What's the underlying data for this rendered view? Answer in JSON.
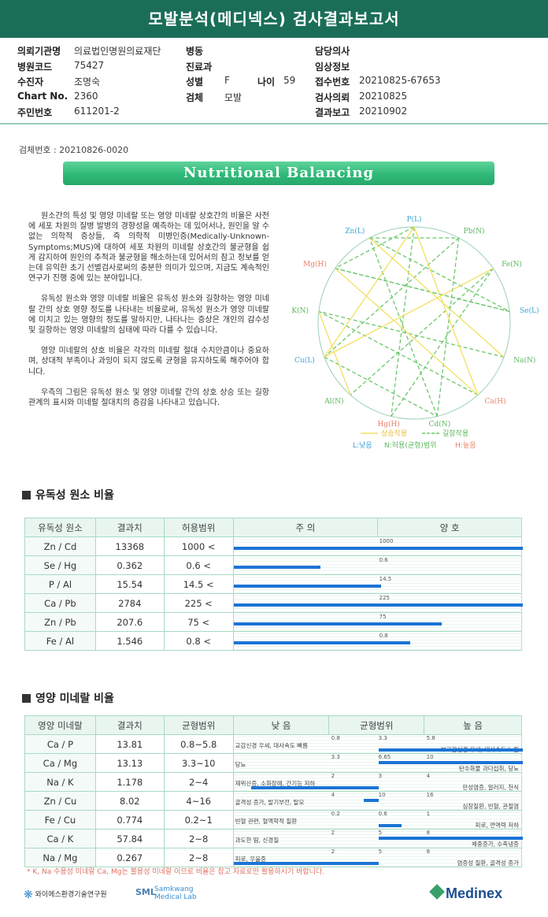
{
  "header": {
    "title": "모발분석(메디넥스) 검사결과보고서"
  },
  "info": {
    "rows": [
      {
        "l1": "의뢰기관명",
        "v1": "의료법인명원의료재단",
        "l2": "병동",
        "v2": "",
        "l3": "",
        "v3": "",
        "l4": "담당의사",
        "v4": ""
      },
      {
        "l1": "병원코드",
        "v1": "75427",
        "l2": "진료과",
        "v2": "",
        "l3": "",
        "v3": "",
        "l4": "임상정보",
        "v4": ""
      },
      {
        "l1": "수진자",
        "v1": "조명숙",
        "l2": "성별",
        "v2": "F",
        "l3": "나이",
        "v3": "59",
        "l4": "접수번호",
        "v4": "20210825-67653"
      },
      {
        "l1": "Chart No.",
        "v1": "2360",
        "l2": "검체",
        "v2": "모발",
        "l3": "",
        "v3": "",
        "l4": "검사의뢰",
        "v4": "20210825"
      },
      {
        "l1": "주민번호",
        "v1": "611201-2",
        "l2": "",
        "v2": "",
        "l3": "",
        "v3": "",
        "l4": "결과보고",
        "v4": "20210902"
      }
    ]
  },
  "sample_no": "검체번호 : 20210826-0020",
  "banner": "Nutritional Balancing",
  "desc": [
    "원소간의 특성 및 영양 미네랄 또는 영양 미네랄 상호간의 비율은 사전에 세포 차원의 질병 발병의 경향성을 예측하는 데 있어서나, 원인을 알 수 없는 의학적 증상들, 즉 의학적 미병인증(Medically-Unknown-Symptoms;MUS)에 대하여 세포 차원의 미네랄 상호간의 불균형을 쉽게 감지하여 원인의 추적과 불균형을 해소하는데 있어서의 참고 정보를 얻는데 유익한 초기 선별검사로써의 충분한 의미가 있으며, 지금도 계속적인 연구가 진행 중에 있는 분야입니다.",
    "유독성 원소와 영양 미네랄 비율은 유독성 원소와 길항하는 영양 미네랄 간의 상호 영향 정도를 나타내는 비율로써, 유독성 원소가 영양 미네랄에 미치고 있는 영향의 정도를 말하지만, 나타나는 증상은 개인의 감수성 및 길항하는 영양 미네랄의 심태에 따라 다를 수 있습니다.",
    "영양 미네랄의 상호 비율은 각각의 미네랄 절대 수치만큼이나 중요하며, 상대적 부족이나 과잉이 되지 않도록 균형을 유지하도록 해주어야 합니다.",
    "우측의 그림은 유독성 원소 및 영양 미네랄 간의 상호 상승 또는 길항 관계의 표시와 미네랄 절대치의 증감을 나타내고 있습니다."
  ],
  "wheel": {
    "nodes": [
      {
        "label": "P(L)",
        "color": "#3aa3d8"
      },
      {
        "label": "Pb(N)",
        "color": "#5cb85c"
      },
      {
        "label": "Fe(N)",
        "color": "#5cb85c"
      },
      {
        "label": "Se(L)",
        "color": "#3aa3d8"
      },
      {
        "label": "Na(N)",
        "color": "#5cb85c"
      },
      {
        "label": "Ca(H)",
        "color": "#e8806a"
      },
      {
        "label": "Cd(N)",
        "color": "#5cb85c"
      },
      {
        "label": "Hg(H)",
        "color": "#e8806a"
      },
      {
        "label": "Al(N)",
        "color": "#5cb85c"
      },
      {
        "label": "Cu(L)",
        "color": "#3aa3d8"
      },
      {
        "label": "K(N)",
        "color": "#5cb85c"
      },
      {
        "label": "Mg(H)",
        "color": "#e8806a"
      },
      {
        "label": "Zn(L)",
        "color": "#3aa3d8"
      }
    ],
    "legend_synergy": "상승작용",
    "legend_antagonism": "길항작용",
    "legend_low": "L:낮음",
    "legend_normal": "N:허용(균형)범위",
    "legend_high": "H:높음"
  },
  "toxic": {
    "title": "유독성 원소 비율",
    "headers": [
      "유독성 원소",
      "결과치",
      "허용범위",
      "주      의",
      "양      호"
    ],
    "rows": [
      {
        "name": "Zn / Cd",
        "result": "13368",
        "range": "1000 <",
        "threshold": "1000",
        "frac": 1.0
      },
      {
        "name": "Se / Hg",
        "result": "0.362",
        "range": "0.6 <",
        "threshold": "0.6",
        "frac": 0.3
      },
      {
        "name": "P / Al",
        "result": "15.54",
        "range": "14.5 <",
        "threshold": "14.5",
        "frac": 0.51
      },
      {
        "name": "Ca / Pb",
        "result": "2784",
        "range": "225 <",
        "threshold": "225",
        "frac": 1.0
      },
      {
        "name": "Zn / Pb",
        "result": "207.6",
        "range": "75 <",
        "threshold": "75",
        "frac": 0.72
      },
      {
        "name": "Fe / Al",
        "result": "1.546",
        "range": "0.8 <",
        "threshold": "0.8",
        "frac": 0.61
      }
    ]
  },
  "nutrient": {
    "title": "영양 미네랄 비율",
    "headers": [
      "영양 미네랄",
      "결과치",
      "균형범위",
      "낮      음",
      "균형범위",
      "높      음"
    ],
    "rows": [
      {
        "name": "Ca / P",
        "result": "13.81",
        "range": "0.8~5.8",
        "low_text": "교감신경 우세, 대사속도 빠름",
        "high_text": "부교감신경 우세, 대사속도 느림",
        "t1": "0.8",
        "t2": "3.3",
        "t3": "5.8",
        "start": 0.5,
        "end": 1.0
      },
      {
        "name": "Ca / Mg",
        "result": "13.13",
        "range": "3.3~10",
        "low_text": "당뇨",
        "high_text": "탄수화물 과다섭취, 당뇨",
        "t1": "3.3",
        "t2": "6.65",
        "t3": "10",
        "start": 0.5,
        "end": 1.0
      },
      {
        "name": "Na / K",
        "result": "1.178",
        "range": "2~4",
        "low_text": "제위산증, 소화장애, 간기능 저하",
        "high_text": "만성염증, 알러지, 천식",
        "t1": "2",
        "t2": "3",
        "t3": "4",
        "start": 0.06,
        "end": 0.5
      },
      {
        "name": "Zn / Cu",
        "result": "8.02",
        "range": "4~16",
        "low_text": "골격성 증가, 발기부전, 탈모",
        "high_text": "심장질환, 빈혈, 관절염",
        "t1": "4",
        "t2": "10",
        "t3": "16",
        "start": 0.45,
        "end": 0.5
      },
      {
        "name": "Fe / Cu",
        "result": "0.774",
        "range": "0.2~1",
        "low_text": "빈혈 관련, 혈액학적 질환",
        "high_text": "피로, 면역력 저하",
        "t1": "0.2",
        "t2": "0.6",
        "t3": "1",
        "start": 0.5,
        "end": 0.58
      },
      {
        "name": "Ca / K",
        "result": "57.84",
        "range": "2~8",
        "low_text": "과도한 땀, 신경질",
        "high_text": "체중증가, 수족냉증",
        "t1": "2",
        "t2": "5",
        "t3": "8",
        "start": 0.5,
        "end": 1.0
      },
      {
        "name": "Na / Mg",
        "result": "0.267",
        "range": "2~8",
        "low_text": "피로, 우울증",
        "high_text": "염증성 질환, 골격성 증가",
        "t1": "2",
        "t2": "5",
        "t3": "8",
        "start": 0.0,
        "end": 0.5
      }
    ]
  },
  "footnote": "* K, Na 수용성 미네랄 Ca, Mg는 불용성 미네랄 이므로 비율은 참고 자료로만 활용하시기 바랍니다.",
  "footer": {
    "logo1": "와이에스환경기술연구원",
    "logo2_a": "Samkwang",
    "logo2_b": "Medical Lab",
    "logo3": "Medinex"
  }
}
